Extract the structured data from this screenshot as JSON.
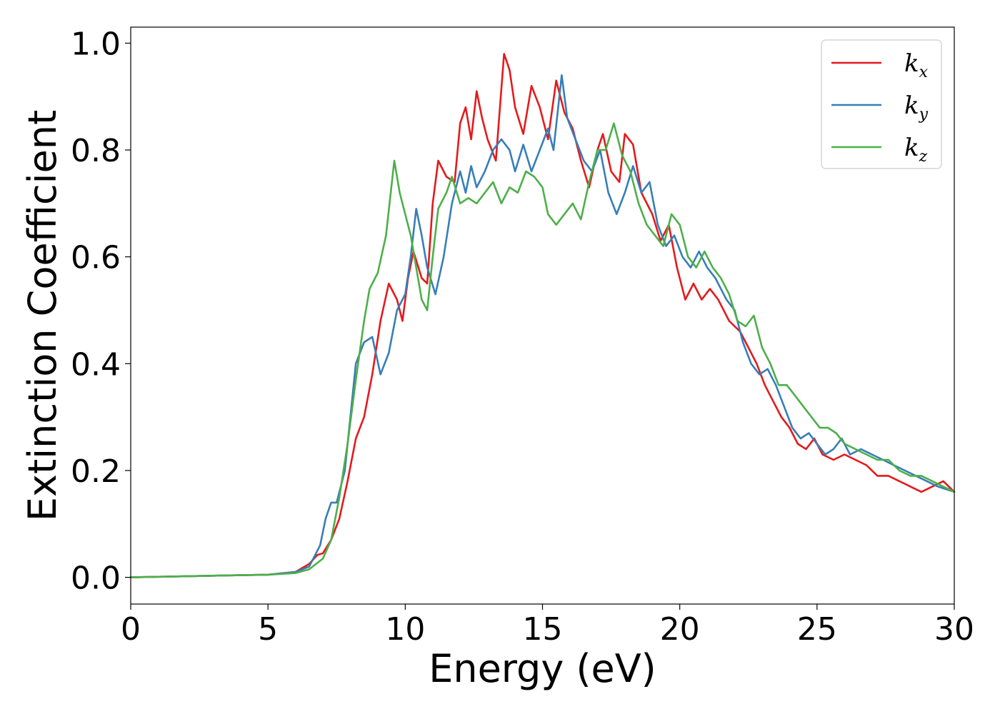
{
  "chart_data": {
    "type": "line",
    "title": "",
    "xlabel": "Energy (eV)",
    "ylabel": "Extinction Coefficient",
    "xlim": [
      0,
      30
    ],
    "ylim": [
      -0.05,
      1.03
    ],
    "xticks": [
      0,
      5,
      10,
      15,
      20,
      25,
      30
    ],
    "xtick_labels": [
      "0",
      "5",
      "10",
      "15",
      "20",
      "25",
      "30"
    ],
    "yticks": [
      0.0,
      0.2,
      0.4,
      0.6,
      0.8,
      1.0
    ],
    "ytick_labels": [
      "0.0",
      "0.2",
      "0.4",
      "0.6",
      "0.8",
      "1.0"
    ],
    "grid": false,
    "legend_position": "top-right",
    "series": [
      {
        "name": "k_x",
        "label_base": "k",
        "label_sub": "x",
        "color": "#e41a1c",
        "points": [
          [
            0,
            0
          ],
          [
            2,
            0.002
          ],
          [
            4,
            0.004
          ],
          [
            5,
            0.005
          ],
          [
            6,
            0.01
          ],
          [
            6.5,
            0.025
          ],
          [
            6.8,
            0.042
          ],
          [
            7.0,
            0.045
          ],
          [
            7.3,
            0.07
          ],
          [
            7.6,
            0.11
          ],
          [
            7.9,
            0.18
          ],
          [
            8.2,
            0.26
          ],
          [
            8.5,
            0.3
          ],
          [
            8.8,
            0.38
          ],
          [
            9.1,
            0.48
          ],
          [
            9.4,
            0.55
          ],
          [
            9.7,
            0.52
          ],
          [
            9.9,
            0.48
          ],
          [
            10.1,
            0.56
          ],
          [
            10.3,
            0.61
          ],
          [
            10.6,
            0.56
          ],
          [
            10.8,
            0.55
          ],
          [
            11.0,
            0.7
          ],
          [
            11.2,
            0.78
          ],
          [
            11.5,
            0.75
          ],
          [
            11.8,
            0.74
          ],
          [
            12.0,
            0.85
          ],
          [
            12.2,
            0.88
          ],
          [
            12.4,
            0.82
          ],
          [
            12.6,
            0.91
          ],
          [
            12.8,
            0.86
          ],
          [
            13.0,
            0.82
          ],
          [
            13.3,
            0.78
          ],
          [
            13.6,
            0.98
          ],
          [
            13.8,
            0.95
          ],
          [
            14.0,
            0.88
          ],
          [
            14.3,
            0.83
          ],
          [
            14.6,
            0.92
          ],
          [
            14.9,
            0.88
          ],
          [
            15.2,
            0.82
          ],
          [
            15.5,
            0.93
          ],
          [
            15.8,
            0.87
          ],
          [
            16.1,
            0.84
          ],
          [
            16.4,
            0.78
          ],
          [
            16.7,
            0.73
          ],
          [
            17.0,
            0.8
          ],
          [
            17.2,
            0.83
          ],
          [
            17.5,
            0.76
          ],
          [
            17.8,
            0.74
          ],
          [
            18.0,
            0.83
          ],
          [
            18.3,
            0.81
          ],
          [
            18.6,
            0.72
          ],
          [
            19.0,
            0.68
          ],
          [
            19.3,
            0.63
          ],
          [
            19.6,
            0.66
          ],
          [
            19.9,
            0.58
          ],
          [
            20.2,
            0.52
          ],
          [
            20.5,
            0.55
          ],
          [
            20.8,
            0.52
          ],
          [
            21.1,
            0.54
          ],
          [
            21.4,
            0.52
          ],
          [
            21.8,
            0.48
          ],
          [
            22.2,
            0.46
          ],
          [
            22.5,
            0.43
          ],
          [
            22.8,
            0.4
          ],
          [
            23.1,
            0.36
          ],
          [
            23.4,
            0.33
          ],
          [
            23.7,
            0.3
          ],
          [
            24.0,
            0.28
          ],
          [
            24.3,
            0.25
          ],
          [
            24.6,
            0.24
          ],
          [
            24.9,
            0.26
          ],
          [
            25.2,
            0.23
          ],
          [
            25.6,
            0.22
          ],
          [
            26.0,
            0.23
          ],
          [
            26.4,
            0.22
          ],
          [
            26.8,
            0.21
          ],
          [
            27.2,
            0.19
          ],
          [
            27.6,
            0.19
          ],
          [
            28.0,
            0.18
          ],
          [
            28.4,
            0.17
          ],
          [
            28.8,
            0.16
          ],
          [
            29.2,
            0.17
          ],
          [
            29.6,
            0.18
          ],
          [
            30.0,
            0.16
          ]
        ]
      },
      {
        "name": "k_y",
        "label_base": "k",
        "label_sub": "y",
        "color": "#377eb8",
        "points": [
          [
            0,
            0
          ],
          [
            2,
            0.002
          ],
          [
            4,
            0.004
          ],
          [
            5,
            0.005
          ],
          [
            6,
            0.01
          ],
          [
            6.5,
            0.02
          ],
          [
            6.9,
            0.06
          ],
          [
            7.1,
            0.11
          ],
          [
            7.3,
            0.14
          ],
          [
            7.5,
            0.14
          ],
          [
            7.8,
            0.2
          ],
          [
            8.0,
            0.3
          ],
          [
            8.2,
            0.4
          ],
          [
            8.5,
            0.44
          ],
          [
            8.8,
            0.45
          ],
          [
            9.1,
            0.38
          ],
          [
            9.4,
            0.42
          ],
          [
            9.7,
            0.5
          ],
          [
            10.0,
            0.53
          ],
          [
            10.2,
            0.6
          ],
          [
            10.4,
            0.69
          ],
          [
            10.6,
            0.64
          ],
          [
            10.8,
            0.58
          ],
          [
            11.1,
            0.53
          ],
          [
            11.4,
            0.6
          ],
          [
            11.7,
            0.7
          ],
          [
            12.0,
            0.76
          ],
          [
            12.2,
            0.72
          ],
          [
            12.4,
            0.77
          ],
          [
            12.6,
            0.73
          ],
          [
            12.9,
            0.76
          ],
          [
            13.2,
            0.8
          ],
          [
            13.5,
            0.82
          ],
          [
            13.8,
            0.8
          ],
          [
            14.0,
            0.76
          ],
          [
            14.3,
            0.81
          ],
          [
            14.6,
            0.76
          ],
          [
            14.9,
            0.8
          ],
          [
            15.2,
            0.84
          ],
          [
            15.4,
            0.8
          ],
          [
            15.7,
            0.94
          ],
          [
            15.9,
            0.86
          ],
          [
            16.2,
            0.82
          ],
          [
            16.5,
            0.78
          ],
          [
            16.8,
            0.76
          ],
          [
            17.1,
            0.8
          ],
          [
            17.4,
            0.72
          ],
          [
            17.7,
            0.68
          ],
          [
            18.0,
            0.72
          ],
          [
            18.3,
            0.77
          ],
          [
            18.6,
            0.72
          ],
          [
            18.9,
            0.74
          ],
          [
            19.2,
            0.66
          ],
          [
            19.5,
            0.62
          ],
          [
            19.8,
            0.64
          ],
          [
            20.1,
            0.6
          ],
          [
            20.4,
            0.58
          ],
          [
            20.7,
            0.61
          ],
          [
            21.0,
            0.58
          ],
          [
            21.3,
            0.56
          ],
          [
            21.7,
            0.52
          ],
          [
            22.0,
            0.5
          ],
          [
            22.3,
            0.44
          ],
          [
            22.6,
            0.4
          ],
          [
            22.9,
            0.38
          ],
          [
            23.2,
            0.39
          ],
          [
            23.5,
            0.36
          ],
          [
            23.8,
            0.32
          ],
          [
            24.1,
            0.28
          ],
          [
            24.4,
            0.26
          ],
          [
            24.7,
            0.27
          ],
          [
            25.0,
            0.25
          ],
          [
            25.3,
            0.23
          ],
          [
            25.6,
            0.24
          ],
          [
            25.9,
            0.26
          ],
          [
            26.2,
            0.23
          ],
          [
            26.6,
            0.24
          ],
          [
            27.0,
            0.23
          ],
          [
            27.4,
            0.22
          ],
          [
            27.8,
            0.21
          ],
          [
            28.2,
            0.2
          ],
          [
            28.6,
            0.19
          ],
          [
            29.0,
            0.18
          ],
          [
            29.4,
            0.17
          ],
          [
            30.0,
            0.16
          ]
        ]
      },
      {
        "name": "k_z",
        "label_base": "k",
        "label_sub": "z",
        "color": "#4daf4a",
        "points": [
          [
            0,
            0
          ],
          [
            2,
            0.002
          ],
          [
            4,
            0.004
          ],
          [
            5,
            0.005
          ],
          [
            6,
            0.008
          ],
          [
            6.5,
            0.015
          ],
          [
            7.0,
            0.035
          ],
          [
            7.3,
            0.07
          ],
          [
            7.6,
            0.15
          ],
          [
            7.9,
            0.25
          ],
          [
            8.2,
            0.37
          ],
          [
            8.5,
            0.48
          ],
          [
            8.7,
            0.54
          ],
          [
            9.0,
            0.57
          ],
          [
            9.3,
            0.64
          ],
          [
            9.6,
            0.78
          ],
          [
            9.8,
            0.72
          ],
          [
            10.0,
            0.68
          ],
          [
            10.2,
            0.64
          ],
          [
            10.4,
            0.58
          ],
          [
            10.6,
            0.52
          ],
          [
            10.8,
            0.5
          ],
          [
            11.0,
            0.6
          ],
          [
            11.2,
            0.69
          ],
          [
            11.5,
            0.72
          ],
          [
            11.7,
            0.75
          ],
          [
            12.0,
            0.7
          ],
          [
            12.3,
            0.71
          ],
          [
            12.6,
            0.7
          ],
          [
            12.9,
            0.72
          ],
          [
            13.2,
            0.74
          ],
          [
            13.5,
            0.7
          ],
          [
            13.8,
            0.73
          ],
          [
            14.1,
            0.72
          ],
          [
            14.4,
            0.76
          ],
          [
            14.7,
            0.75
          ],
          [
            15.0,
            0.73
          ],
          [
            15.2,
            0.68
          ],
          [
            15.5,
            0.66
          ],
          [
            15.8,
            0.68
          ],
          [
            16.1,
            0.7
          ],
          [
            16.4,
            0.67
          ],
          [
            16.7,
            0.74
          ],
          [
            17.0,
            0.8
          ],
          [
            17.3,
            0.8
          ],
          [
            17.6,
            0.85
          ],
          [
            17.9,
            0.79
          ],
          [
            18.2,
            0.76
          ],
          [
            18.5,
            0.7
          ],
          [
            18.8,
            0.66
          ],
          [
            19.1,
            0.64
          ],
          [
            19.4,
            0.62
          ],
          [
            19.7,
            0.68
          ],
          [
            20.0,
            0.66
          ],
          [
            20.3,
            0.6
          ],
          [
            20.6,
            0.58
          ],
          [
            20.9,
            0.61
          ],
          [
            21.2,
            0.58
          ],
          [
            21.5,
            0.56
          ],
          [
            21.8,
            0.53
          ],
          [
            22.1,
            0.48
          ],
          [
            22.4,
            0.47
          ],
          [
            22.7,
            0.49
          ],
          [
            23.0,
            0.43
          ],
          [
            23.3,
            0.4
          ],
          [
            23.6,
            0.36
          ],
          [
            23.9,
            0.36
          ],
          [
            24.2,
            0.34
          ],
          [
            24.5,
            0.32
          ],
          [
            24.8,
            0.3
          ],
          [
            25.1,
            0.28
          ],
          [
            25.4,
            0.28
          ],
          [
            25.7,
            0.27
          ],
          [
            26.0,
            0.25
          ],
          [
            26.4,
            0.24
          ],
          [
            26.8,
            0.23
          ],
          [
            27.2,
            0.22
          ],
          [
            27.6,
            0.22
          ],
          [
            28.0,
            0.2
          ],
          [
            28.4,
            0.19
          ],
          [
            28.8,
            0.19
          ],
          [
            29.2,
            0.18
          ],
          [
            29.6,
            0.17
          ],
          [
            30.0,
            0.16
          ]
        ]
      }
    ]
  }
}
